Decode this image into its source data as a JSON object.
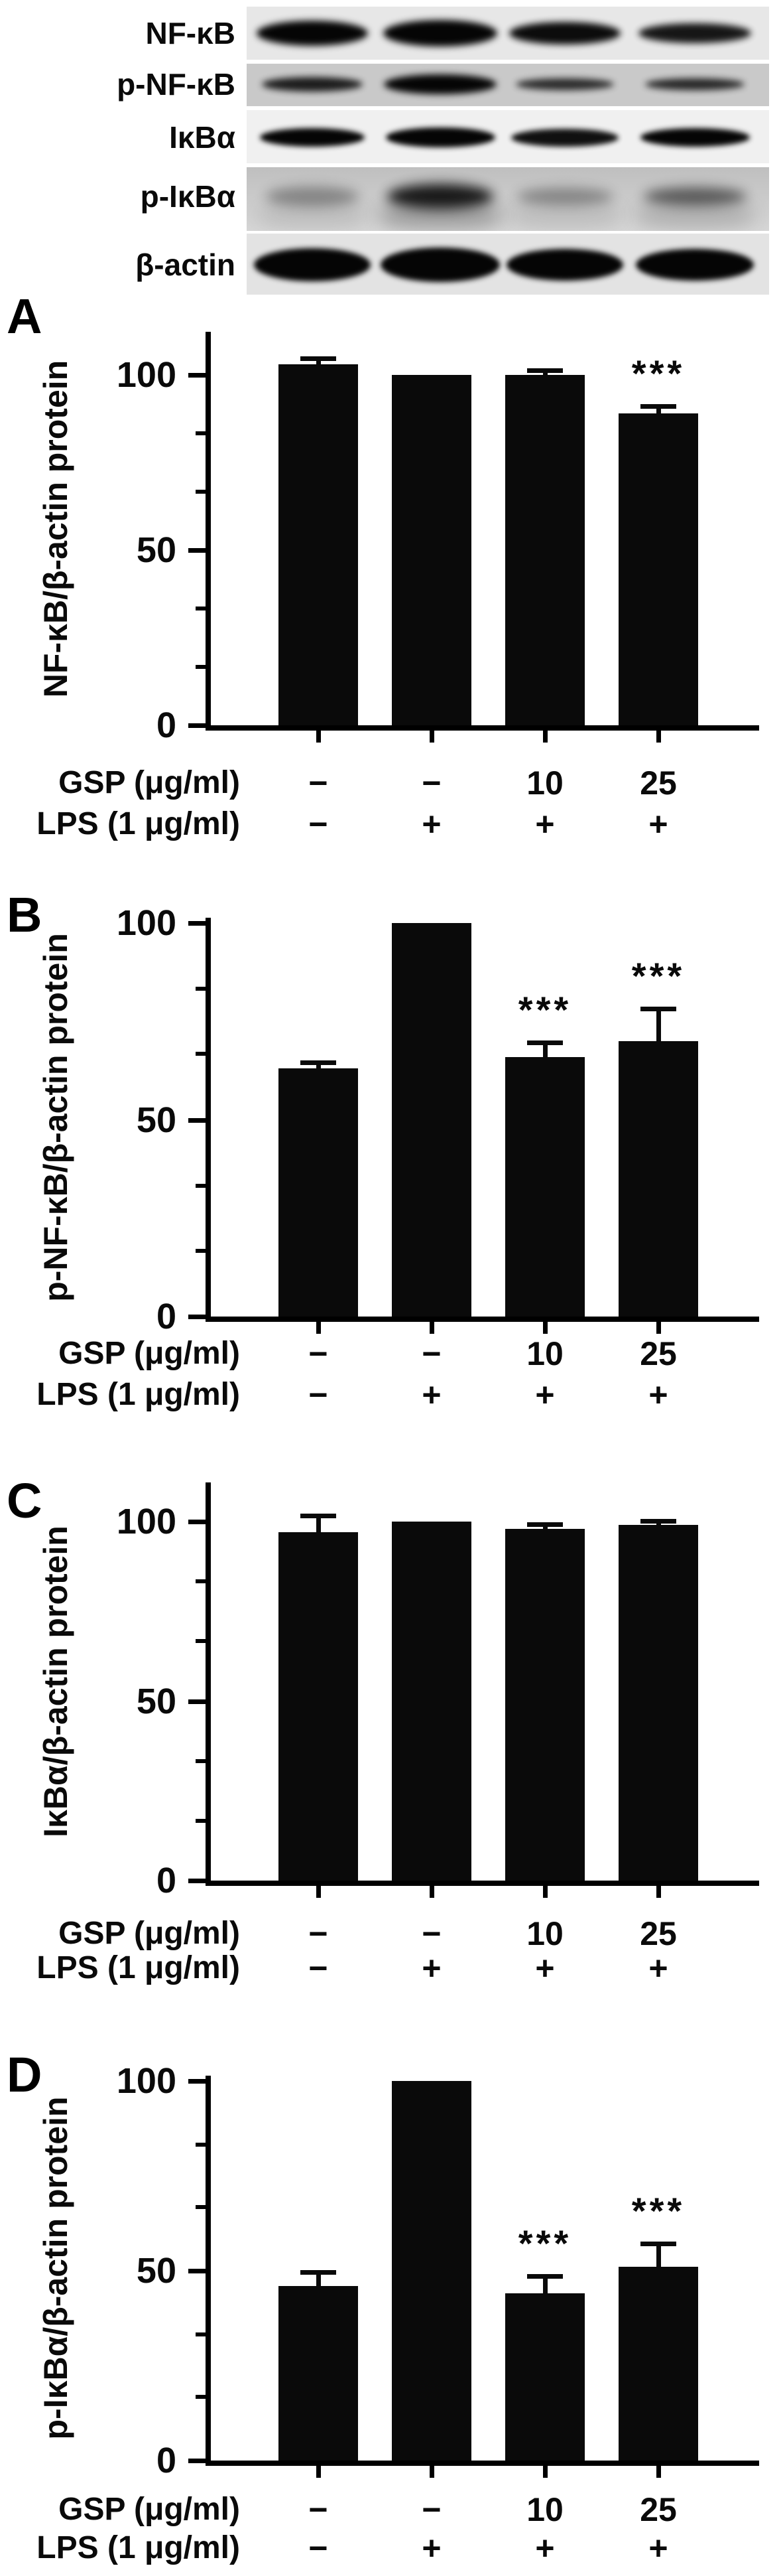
{
  "figure": {
    "background": "#ffffff",
    "ink_color": "#000000",
    "bar_color": "#0a0a0a",
    "significance_symbol": "***",
    "gsp_label": "GSP (μg/ml)",
    "lps_label": "LPS (1 μg/ml)",
    "gsp_values": [
      "−",
      "−",
      "10",
      "25"
    ],
    "lps_values": [
      "−",
      "+",
      "+",
      "+"
    ],
    "blot": {
      "lanes": 4,
      "rows": [
        {
          "label": "NF-κB",
          "bands": [
            {
              "w": 168,
              "h": 38,
              "o": 1
            },
            {
              "w": 172,
              "h": 40,
              "o": 1
            },
            {
              "w": 168,
              "h": 34,
              "o": 0.97
            },
            {
              "w": 170,
              "h": 30,
              "o": 0.92
            }
          ]
        },
        {
          "label": "p-NF-κB",
          "bands": [
            {
              "w": 152,
              "h": 22,
              "o": 0.88
            },
            {
              "w": 170,
              "h": 30,
              "o": 1
            },
            {
              "w": 148,
              "h": 18,
              "o": 0.8
            },
            {
              "w": 150,
              "h": 18,
              "o": 0.82
            }
          ]
        },
        {
          "label": "IκBα",
          "bands": [
            {
              "w": 158,
              "h": 28,
              "o": 1
            },
            {
              "w": 165,
              "h": 30,
              "o": 1
            },
            {
              "w": 162,
              "h": 27,
              "o": 0.95
            },
            {
              "w": 165,
              "h": 28,
              "o": 1
            }
          ]
        },
        {
          "label": "p-IκBα",
          "bands": [
            {
              "w": 140,
              "h": 30,
              "o": 0.33
            },
            {
              "w": 160,
              "h": 38,
              "o": 0.9
            },
            {
              "w": 145,
              "h": 26,
              "o": 0.33
            },
            {
              "w": 155,
              "h": 28,
              "o": 0.55
            }
          ]
        },
        {
          "label": "β-actin",
          "bands": [
            {
              "w": 176,
              "h": 50,
              "o": 1
            },
            {
              "w": 180,
              "h": 52,
              "o": 1
            },
            {
              "w": 176,
              "h": 48,
              "o": 1
            },
            {
              "w": 178,
              "h": 48,
              "o": 1
            }
          ]
        }
      ]
    }
  },
  "chart_data": [
    {
      "type": "bar",
      "panel": "A",
      "ylabel": "NF-κB/β-actin protein",
      "categories": [
        "GSP − / LPS −",
        "GSP − / LPS +",
        "GSP 10 / LPS +",
        "GSP 25 / LPS +"
      ],
      "values": [
        103,
        100,
        100,
        89
      ],
      "errors": [
        1.5,
        0,
        1.2,
        2
      ],
      "significance": [
        "",
        "",
        "",
        "***"
      ],
      "yticks": [
        0,
        50,
        100
      ],
      "minor_yticks": [
        16.7,
        33.3,
        66.7,
        83.3
      ],
      "ylim": [
        0,
        112
      ],
      "grid": false,
      "legend": "none"
    },
    {
      "type": "bar",
      "panel": "B",
      "ylabel": "p-NF-κB/β-actin protein",
      "categories": [
        "GSP − / LPS −",
        "GSP − / LPS +",
        "GSP 10 / LPS +",
        "GSP 25 / LPS +"
      ],
      "values": [
        63,
        100,
        66,
        70
      ],
      "errors": [
        1.5,
        0,
        3.5,
        8
      ],
      "significance": [
        "",
        "",
        "***",
        "***"
      ],
      "yticks": [
        0,
        50,
        100
      ],
      "minor_yticks": [
        16.7,
        33.3,
        66.7,
        83.3
      ],
      "ylim": [
        0,
        101
      ],
      "grid": false,
      "legend": "none"
    },
    {
      "type": "bar",
      "panel": "C",
      "ylabel": "IκBα/β-actin protein",
      "categories": [
        "GSP − / LPS −",
        "GSP − / LPS +",
        "GSP 10 / LPS +",
        "GSP 25 / LPS +"
      ],
      "values": [
        97,
        100,
        98,
        99
      ],
      "errors": [
        4.5,
        0,
        1,
        1
      ],
      "significance": [
        "",
        "",
        "",
        ""
      ],
      "yticks": [
        0,
        50,
        100
      ],
      "minor_yticks": [
        16.7,
        33.3,
        66.7,
        83.3
      ],
      "ylim": [
        0,
        112
      ],
      "grid": false,
      "legend": "none"
    },
    {
      "type": "bar",
      "panel": "D",
      "ylabel": "p-IκBα/β-actin protein",
      "categories": [
        "GSP − / LPS −",
        "GSP − / LPS +",
        "GSP 10 / LPS +",
        "GSP 25 / LPS +"
      ],
      "values": [
        46,
        100,
        44,
        51
      ],
      "errors": [
        3.5,
        0,
        4.5,
        6
      ],
      "significance": [
        "",
        "",
        "***",
        "***"
      ],
      "yticks": [
        0,
        50,
        100
      ],
      "minor_yticks": [
        16.7,
        33.3,
        66.7,
        83.3
      ],
      "ylim": [
        0,
        101
      ],
      "grid": false,
      "legend": "none"
    }
  ]
}
